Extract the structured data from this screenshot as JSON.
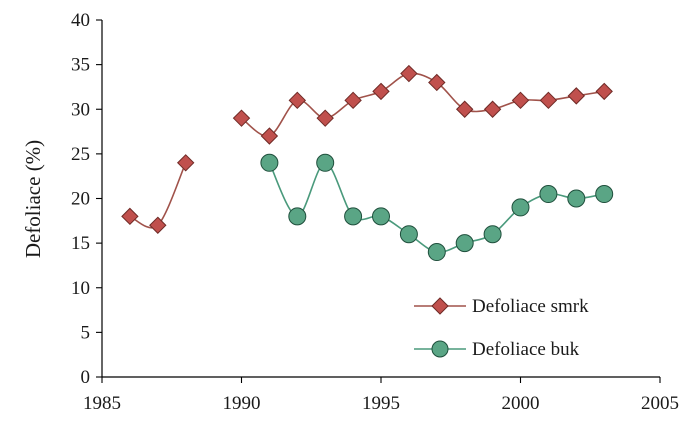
{
  "chart_data": {
    "type": "line",
    "title": "",
    "xlabel": "",
    "ylabel": "Defoliace (%)",
    "xlim": [
      1985,
      2005
    ],
    "ylim": [
      0,
      40
    ],
    "x_ticks": [
      1985,
      1990,
      1995,
      2000,
      2005
    ],
    "y_ticks": [
      0,
      5,
      10,
      15,
      20,
      25,
      30,
      35,
      40
    ],
    "grid": false,
    "legend_position": "bottom-right",
    "series": [
      {
        "name": "Defoliace smrk",
        "marker": "diamond",
        "line_color": "#a0524a",
        "marker_color": "#c0504d",
        "segments": [
          {
            "x": [
              1986,
              1987,
              1988
            ],
            "y": [
              18,
              17,
              24
            ]
          },
          {
            "x": [
              1990,
              1991,
              1992,
              1993,
              1994,
              1995,
              1996,
              1997,
              1998,
              1999,
              2000,
              2001,
              2002,
              2003
            ],
            "y": [
              29,
              27,
              31,
              29,
              31,
              32,
              34,
              33,
              30,
              30,
              31,
              31,
              31.5,
              32
            ]
          }
        ]
      },
      {
        "name": "Defoliace buk",
        "marker": "circle",
        "line_color": "#4a9a7c",
        "marker_color": "#5aa585",
        "segments": [
          {
            "x": [
              1991,
              1992,
              1993,
              1994,
              1995,
              1996,
              1997,
              1998,
              1999,
              2000,
              2001,
              2002,
              2003
            ],
            "y": [
              24,
              18,
              24,
              18,
              18,
              16,
              14,
              15,
              16,
              19,
              20.5,
              20,
              20.5
            ]
          }
        ]
      }
    ]
  }
}
